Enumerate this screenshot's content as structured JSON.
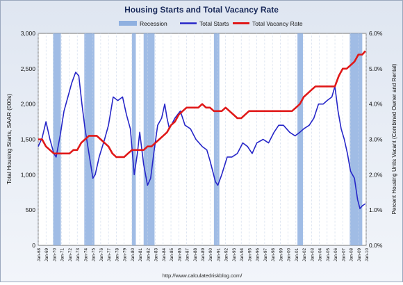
{
  "chart_data": {
    "type": "line",
    "title": "Housing Starts and Total Vacancy Rate",
    "legend": {
      "position": "top",
      "entries": [
        {
          "name": "Recession",
          "color": "#8fb0e0",
          "kind": "band"
        },
        {
          "name": "Total Starts",
          "color": "#2626c8",
          "kind": "line"
        },
        {
          "name": "Total Vacancy Rate",
          "color": "#e01818",
          "kind": "line"
        }
      ]
    },
    "ylabel_left": "Total Housing Starts, SAAR (000s)",
    "ylabel_right": "Percent Housing Units Vacant (Combined Owner and Rental)",
    "left_ticks": [
      0,
      500,
      1000,
      1500,
      2000,
      2500,
      3000
    ],
    "left_tick_labels": [
      "0",
      "500",
      "1,000",
      "1,500",
      "2,000",
      "2,500",
      "3,000"
    ],
    "right_ticks": [
      0,
      1,
      2,
      3,
      4,
      5,
      6
    ],
    "right_tick_labels": [
      "0.0%",
      "1.0%",
      "2.0%",
      "3.0%",
      "4.0%",
      "5.0%",
      "6.0%"
    ],
    "ylim_left": [
      0,
      3000
    ],
    "ylim_right": [
      0,
      6
    ],
    "xlim": [
      1968,
      2010
    ],
    "x_tick_labels": [
      "Jan-68",
      "Jan-69",
      "Jan-70",
      "Jan-71",
      "Jan-72",
      "Jan-73",
      "Jan-74",
      "Jan-75",
      "Jan-76",
      "Jan-77",
      "Jan-78",
      "Jan-79",
      "Jan-80",
      "Jan-81",
      "Jan-82",
      "Jan-83",
      "Jan-84",
      "Jan-85",
      "Jan-86",
      "Jan-87",
      "Jan-88",
      "Jan-89",
      "Jan-90",
      "Jan-91",
      "Jan-92",
      "Jan-93",
      "Jan-94",
      "Jan-95",
      "Jan-96",
      "Jan-97",
      "Jan-98",
      "Jan-99",
      "Jan-00",
      "Jan-01",
      "Jan-02",
      "Jan-03",
      "Jan-04",
      "Jan-05",
      "Jan-06",
      "Jan-07",
      "Jan-08",
      "Jan-09",
      "Jan-10"
    ],
    "recessions": [
      [
        1969.9,
        1970.9
      ],
      [
        1973.9,
        1975.2
      ],
      [
        1980.0,
        1980.5
      ],
      [
        1981.5,
        1982.9
      ],
      [
        1990.5,
        1991.2
      ],
      [
        2001.2,
        2001.9
      ],
      [
        2007.9,
        2009.5
      ]
    ],
    "grid": "vertical",
    "source": "http://www.calculatedriskblog.com/",
    "series": [
      {
        "name": "Total Starts",
        "axis": "left",
        "color": "#2626c8",
        "points": [
          [
            1968.0,
            1400
          ],
          [
            1968.5,
            1520
          ],
          [
            1969.0,
            1750
          ],
          [
            1969.5,
            1500
          ],
          [
            1970.0,
            1300
          ],
          [
            1970.3,
            1250
          ],
          [
            1970.8,
            1550
          ],
          [
            1971.3,
            1900
          ],
          [
            1971.8,
            2100
          ],
          [
            1972.3,
            2300
          ],
          [
            1972.8,
            2450
          ],
          [
            1973.2,
            2400
          ],
          [
            1973.6,
            2000
          ],
          [
            1974.0,
            1650
          ],
          [
            1974.5,
            1300
          ],
          [
            1975.0,
            950
          ],
          [
            1975.3,
            1000
          ],
          [
            1975.8,
            1250
          ],
          [
            1976.5,
            1500
          ],
          [
            1977.0,
            1700
          ],
          [
            1977.6,
            2100
          ],
          [
            1978.2,
            2050
          ],
          [
            1978.8,
            2100
          ],
          [
            1979.3,
            1850
          ],
          [
            1979.8,
            1650
          ],
          [
            1980.3,
            1000
          ],
          [
            1980.7,
            1300
          ],
          [
            1981.0,
            1600
          ],
          [
            1981.5,
            1150
          ],
          [
            1982.0,
            850
          ],
          [
            1982.4,
            950
          ],
          [
            1982.8,
            1300
          ],
          [
            1983.3,
            1700
          ],
          [
            1983.8,
            1800
          ],
          [
            1984.2,
            2000
          ],
          [
            1984.5,
            1800
          ],
          [
            1984.8,
            1650
          ],
          [
            1985.5,
            1800
          ],
          [
            1986.2,
            1900
          ],
          [
            1986.8,
            1700
          ],
          [
            1987.5,
            1650
          ],
          [
            1988.2,
            1500
          ],
          [
            1989.0,
            1400
          ],
          [
            1989.6,
            1350
          ],
          [
            1990.0,
            1200
          ],
          [
            1990.7,
            900
          ],
          [
            1991.0,
            850
          ],
          [
            1991.5,
            1000
          ],
          [
            1992.2,
            1250
          ],
          [
            1992.8,
            1250
          ],
          [
            1993.5,
            1300
          ],
          [
            1994.2,
            1450
          ],
          [
            1994.8,
            1400
          ],
          [
            1995.4,
            1300
          ],
          [
            1996.0,
            1450
          ],
          [
            1996.8,
            1500
          ],
          [
            1997.5,
            1450
          ],
          [
            1998.2,
            1600
          ],
          [
            1998.8,
            1700
          ],
          [
            1999.4,
            1700
          ],
          [
            2000.2,
            1600
          ],
          [
            2000.9,
            1550
          ],
          [
            2001.5,
            1600
          ],
          [
            2002.0,
            1650
          ],
          [
            2002.7,
            1700
          ],
          [
            2003.3,
            1800
          ],
          [
            2003.9,
            2000
          ],
          [
            2004.5,
            2000
          ],
          [
            2005.0,
            2050
          ],
          [
            2005.6,
            2100
          ],
          [
            2006.0,
            2250
          ],
          [
            2006.4,
            1900
          ],
          [
            2006.8,
            1650
          ],
          [
            2007.2,
            1500
          ],
          [
            2007.6,
            1300
          ],
          [
            2008.0,
            1050
          ],
          [
            2008.5,
            950
          ],
          [
            2008.9,
            650
          ],
          [
            2009.2,
            520
          ],
          [
            2009.5,
            560
          ],
          [
            2009.9,
            590
          ]
        ]
      },
      {
        "name": "Total Vacancy Rate",
        "axis": "right",
        "color": "#e01818",
        "points": [
          [
            1968.0,
            3.0
          ],
          [
            1968.5,
            3.0
          ],
          [
            1969.0,
            2.8
          ],
          [
            1969.5,
            2.7
          ],
          [
            1970.0,
            2.6
          ],
          [
            1970.5,
            2.6
          ],
          [
            1971.0,
            2.6
          ],
          [
            1971.5,
            2.6
          ],
          [
            1972.0,
            2.6
          ],
          [
            1972.5,
            2.7
          ],
          [
            1973.0,
            2.7
          ],
          [
            1973.5,
            2.9
          ],
          [
            1974.0,
            3.0
          ],
          [
            1974.5,
            3.1
          ],
          [
            1975.0,
            3.1
          ],
          [
            1975.5,
            3.1
          ],
          [
            1976.0,
            3.0
          ],
          [
            1976.5,
            2.9
          ],
          [
            1977.0,
            2.8
          ],
          [
            1977.5,
            2.6
          ],
          [
            1978.0,
            2.5
          ],
          [
            1978.5,
            2.5
          ],
          [
            1979.0,
            2.5
          ],
          [
            1979.5,
            2.6
          ],
          [
            1980.0,
            2.7
          ],
          [
            1980.5,
            2.7
          ],
          [
            1981.0,
            2.7
          ],
          [
            1981.5,
            2.7
          ],
          [
            1982.0,
            2.8
          ],
          [
            1982.5,
            2.8
          ],
          [
            1983.0,
            2.9
          ],
          [
            1983.5,
            3.0
          ],
          [
            1984.0,
            3.1
          ],
          [
            1984.5,
            3.2
          ],
          [
            1985.0,
            3.4
          ],
          [
            1985.5,
            3.5
          ],
          [
            1986.0,
            3.7
          ],
          [
            1986.5,
            3.8
          ],
          [
            1987.0,
            3.9
          ],
          [
            1987.5,
            3.9
          ],
          [
            1988.0,
            3.9
          ],
          [
            1988.5,
            3.9
          ],
          [
            1989.0,
            4.0
          ],
          [
            1989.5,
            3.9
          ],
          [
            1990.0,
            3.9
          ],
          [
            1990.5,
            3.8
          ],
          [
            1991.0,
            3.8
          ],
          [
            1991.5,
            3.8
          ],
          [
            1992.0,
            3.9
          ],
          [
            1992.5,
            3.8
          ],
          [
            1993.0,
            3.7
          ],
          [
            1993.5,
            3.6
          ],
          [
            1994.0,
            3.6
          ],
          [
            1994.5,
            3.7
          ],
          [
            1995.0,
            3.8
          ],
          [
            1995.5,
            3.8
          ],
          [
            1996.0,
            3.8
          ],
          [
            1996.5,
            3.8
          ],
          [
            1997.0,
            3.8
          ],
          [
            1997.5,
            3.8
          ],
          [
            1998.0,
            3.8
          ],
          [
            1998.5,
            3.8
          ],
          [
            1999.0,
            3.8
          ],
          [
            1999.5,
            3.8
          ],
          [
            2000.0,
            3.8
          ],
          [
            2000.5,
            3.8
          ],
          [
            2001.0,
            3.9
          ],
          [
            2001.5,
            4.0
          ],
          [
            2002.0,
            4.2
          ],
          [
            2002.5,
            4.3
          ],
          [
            2003.0,
            4.4
          ],
          [
            2003.5,
            4.5
          ],
          [
            2004.0,
            4.5
          ],
          [
            2004.5,
            4.5
          ],
          [
            2005.0,
            4.5
          ],
          [
            2005.5,
            4.5
          ],
          [
            2006.0,
            4.5
          ],
          [
            2006.5,
            4.8
          ],
          [
            2007.0,
            5.0
          ],
          [
            2007.5,
            5.0
          ],
          [
            2008.0,
            5.1
          ],
          [
            2008.5,
            5.2
          ],
          [
            2009.0,
            5.4
          ],
          [
            2009.5,
            5.4
          ],
          [
            2009.9,
            5.5
          ]
        ]
      }
    ]
  }
}
